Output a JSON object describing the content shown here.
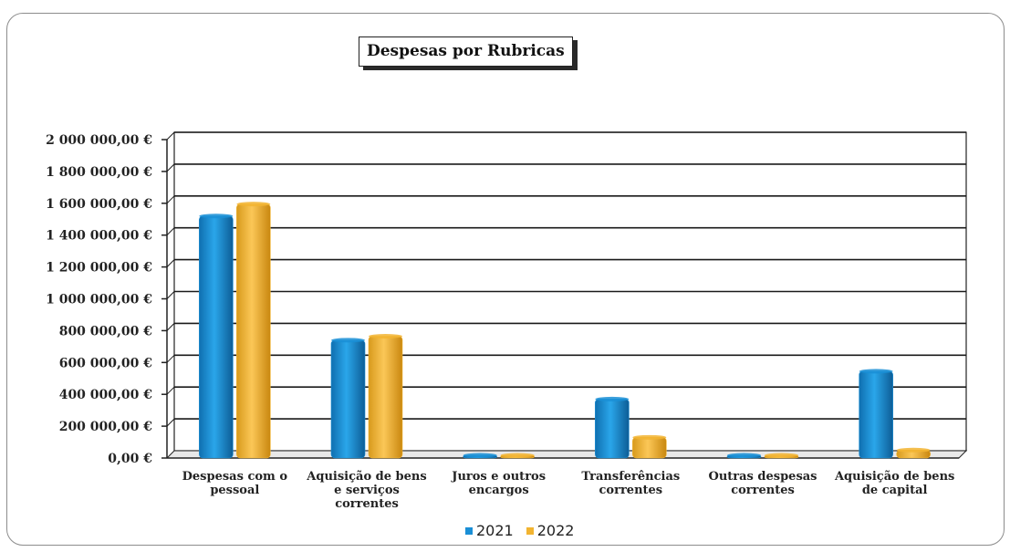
{
  "chart_data": {
    "type": "bar",
    "title": "Despesas por Rubricas",
    "categories": [
      [
        "Despesas com o",
        "pessoal"
      ],
      [
        "Aquisição de bens",
        "e serviços",
        "correntes"
      ],
      [
        "Juros e outros",
        "encargos"
      ],
      [
        "Transferências",
        "correntes"
      ],
      [
        "Outras despesas",
        "correntes"
      ],
      [
        "Aquisição de bens",
        "de capital"
      ]
    ],
    "series": [
      {
        "name": "2021",
        "values": [
          1520000,
          740000,
          15000,
          370000,
          15000,
          545000
        ],
        "color": "#1a8fd6"
      },
      {
        "name": "2022",
        "values": [
          1595000,
          765000,
          15000,
          130000,
          15000,
          50000
        ],
        "color": "#f2b431"
      }
    ],
    "yticks": [
      "0,00 €",
      "200 000,00 €",
      "400 000,00 €",
      "600 000,00 €",
      "800 000,00 €",
      "1 000 000,00 €",
      "1 200 000,00 €",
      "1 400 000,00 €",
      "1 600 000,00 €",
      "1 800 000,00 €",
      "2 000 000,00 €"
    ],
    "ylim": [
      0,
      2000000
    ],
    "grid": true,
    "legend_position": "bottom"
  }
}
